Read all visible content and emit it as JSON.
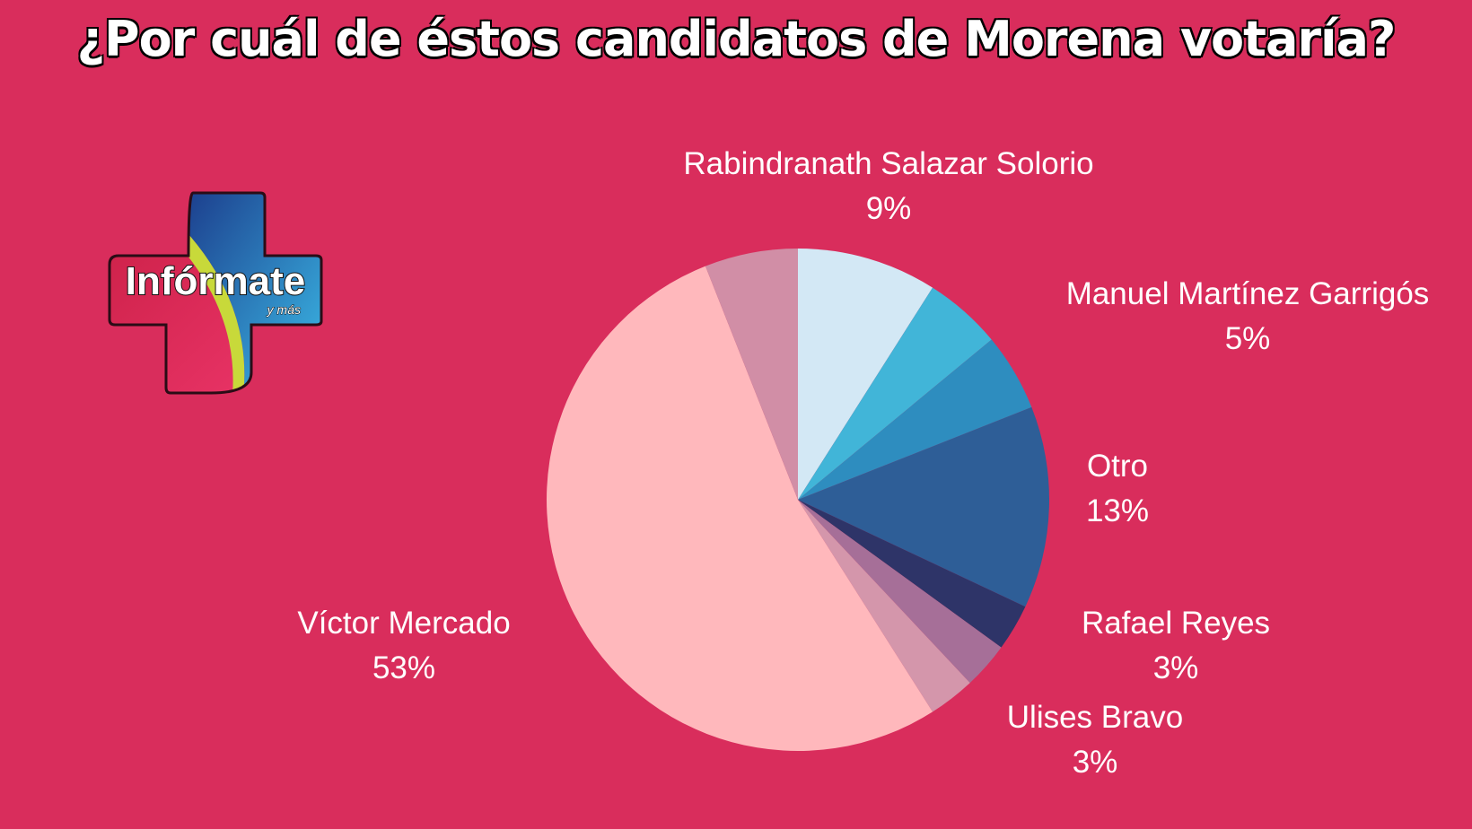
{
  "title": "¿Por cuál de éstos candidatos de Morena votaría?",
  "logo": {
    "text": "Infórmate",
    "tagline": "y más"
  },
  "chart_data": {
    "type": "pie",
    "title": "¿Por cuál de éstos candidatos de Morena votaría?",
    "slices": [
      {
        "name": "Rabindranath Salazar Solorio",
        "value": 9,
        "label": "9%",
        "color": "#d3e8f5"
      },
      {
        "name": "Manuel Martínez Garrigós",
        "value": 5,
        "label": "5%",
        "color": "#41b5d8"
      },
      {
        "name": "",
        "value": 5,
        "label": "",
        "color": "#2e8dbf"
      },
      {
        "name": "Otro",
        "value": 13,
        "label": "13%",
        "color": "#2e5e97"
      },
      {
        "name": "Rafael Reyes",
        "value": 3,
        "label": "3%",
        "color": "#2e3468"
      },
      {
        "name": "",
        "value": 3,
        "label": "",
        "color": "#a66f98"
      },
      {
        "name": "Ulises Bravo",
        "value": 3,
        "label": "3%",
        "color": "#d496ab"
      },
      {
        "name": "Víctor Mercado",
        "value": 53,
        "label": "53%",
        "color": "#ffb8bc"
      },
      {
        "name": "",
        "value": 6,
        "label": "",
        "color": "#d18ea6"
      }
    ]
  }
}
